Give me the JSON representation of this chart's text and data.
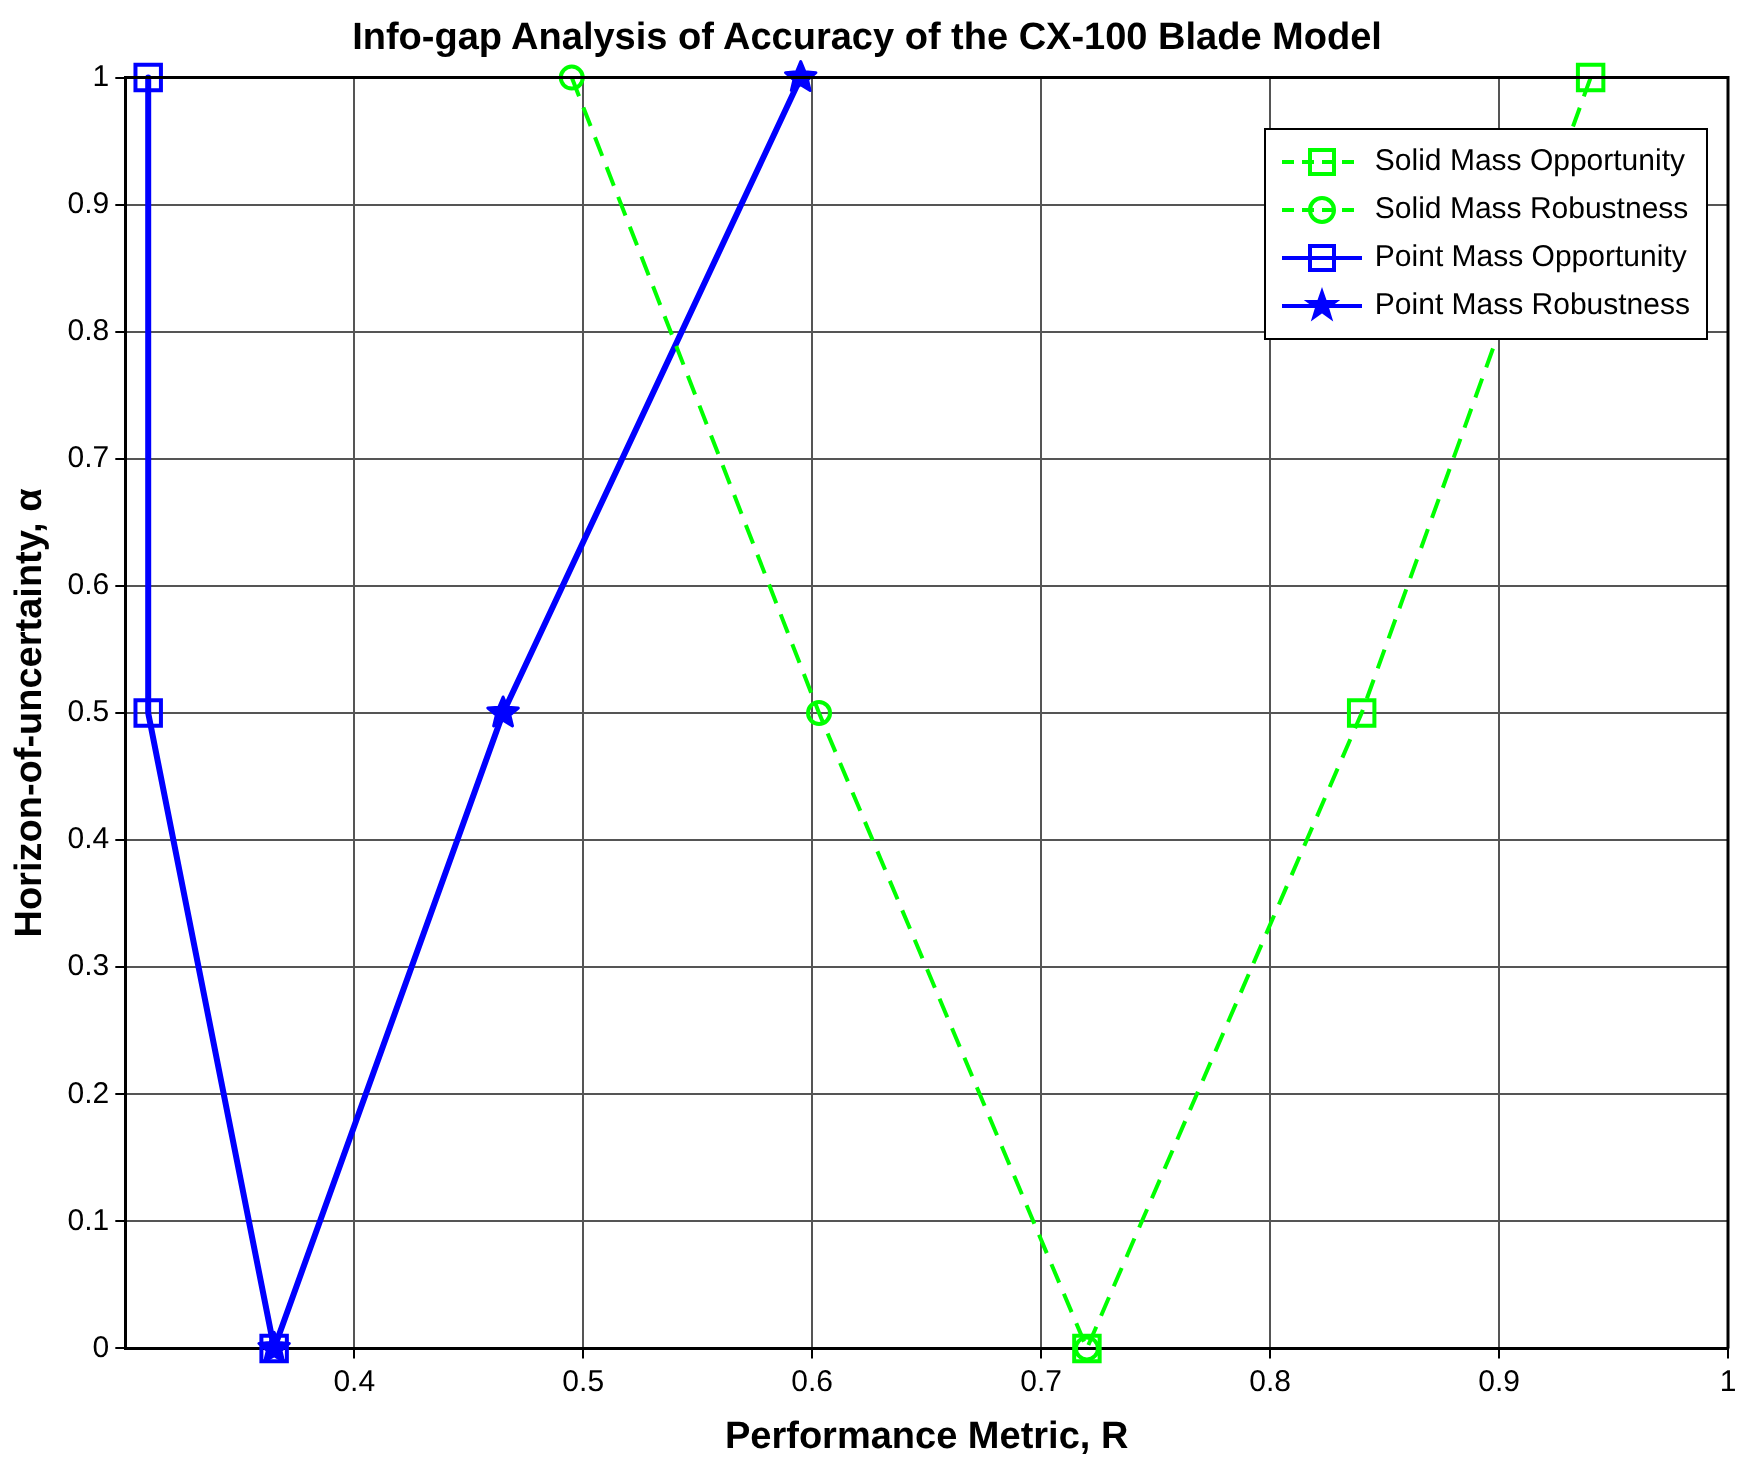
{
  "chart_data": {
    "type": "line",
    "title": "Info-gap Analysis of Accuracy of the CX-100 Blade Model",
    "xlabel": "Performance Metric, R",
    "ylabel": "Horizon-of-uncertainty, α",
    "xlim": [
      0.3,
      1
    ],
    "xticks": [
      0.4,
      0.5,
      0.6,
      0.7,
      0.8,
      0.9,
      1
    ],
    "ylim": [
      0,
      1
    ],
    "yticks": [
      0,
      0.1,
      0.2,
      0.3,
      0.4,
      0.5,
      0.6,
      0.7,
      0.8,
      0.9,
      1
    ],
    "grid": true,
    "legend": "top right",
    "series": [
      {
        "name": "Solid Mass Opportunity",
        "color": "#00ff00",
        "x": [
          0.94,
          0.84,
          0.72
        ],
        "values": [
          1,
          0.5,
          0
        ],
        "marker": "square",
        "line_style": "dashed"
      },
      {
        "name": "Solid Mass Robustness",
        "color": "#00ff00",
        "x": [
          0.495,
          0.603,
          0.72
        ],
        "values": [
          1,
          0.5,
          0
        ],
        "marker": "circle",
        "line_style": "dashed"
      },
      {
        "name": "Point Mass Opportunity",
        "color": "#0000ff",
        "x": [
          0.31,
          0.31,
          0.365
        ],
        "values": [
          1,
          0.5,
          0
        ],
        "marker": "square",
        "line_style": "solid"
      },
      {
        "name": "Point Mass Robustness",
        "color": "#0000ff",
        "x": [
          0.595,
          0.465,
          0.365
        ],
        "values": [
          1,
          0.5,
          0
        ],
        "marker": "star",
        "line_style": "solid"
      }
    ]
  }
}
